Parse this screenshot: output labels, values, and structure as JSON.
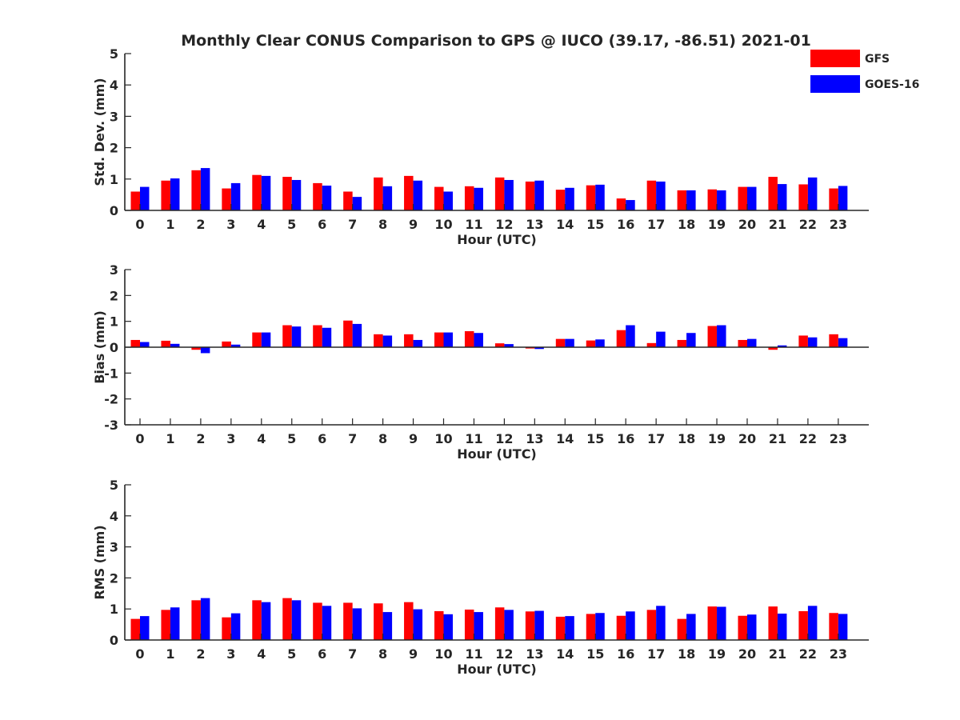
{
  "title": "Monthly Clear CONUS Comparison to GPS @ IUCO (39.17, -86.51) 2021-01",
  "colors": {
    "gfs": "#ff0000",
    "goes": "#0000ff",
    "axis": "#262626"
  },
  "legend": [
    {
      "name": "GFS",
      "color": "#ff0000"
    },
    {
      "name": "GOES-16",
      "color": "#0000ff"
    }
  ],
  "chart_data": [
    {
      "type": "bar",
      "panel": "std-dev",
      "ylabel": "Std. Dev. (mm)",
      "xlabel": "Hour (UTC)",
      "ylim": [
        0,
        5
      ],
      "yticks": [
        0,
        1,
        2,
        3,
        4,
        5
      ],
      "categories": [
        "0",
        "1",
        "2",
        "3",
        "4",
        "5",
        "6",
        "7",
        "8",
        "9",
        "10",
        "11",
        "12",
        "13",
        "14",
        "15",
        "16",
        "17",
        "18",
        "19",
        "20",
        "21",
        "22",
        "23"
      ],
      "series": [
        {
          "name": "GFS",
          "values": [
            0.6,
            0.95,
            1.28,
            0.7,
            1.13,
            1.07,
            0.87,
            0.6,
            1.05,
            1.1,
            0.75,
            0.77,
            1.05,
            0.92,
            0.66,
            0.8,
            0.38,
            0.95,
            0.64,
            0.67,
            0.75,
            1.07,
            0.83,
            0.7
          ]
        },
        {
          "name": "GOES-16",
          "values": [
            0.75,
            1.02,
            1.35,
            0.87,
            1.1,
            0.97,
            0.79,
            0.43,
            0.77,
            0.95,
            0.6,
            0.72,
            0.97,
            0.95,
            0.72,
            0.82,
            0.33,
            0.92,
            0.64,
            0.64,
            0.75,
            0.84,
            1.05,
            0.78
          ]
        }
      ]
    },
    {
      "type": "bar",
      "panel": "bias",
      "ylabel": "Bias (mm)",
      "xlabel": "Hour (UTC)",
      "ylim": [
        -3,
        3
      ],
      "yticks": [
        -3,
        -2,
        -1,
        0,
        1,
        2,
        3
      ],
      "categories": [
        "0",
        "1",
        "2",
        "3",
        "4",
        "5",
        "6",
        "7",
        "8",
        "9",
        "10",
        "11",
        "12",
        "13",
        "14",
        "15",
        "16",
        "17",
        "18",
        "19",
        "20",
        "21",
        "22",
        "23"
      ],
      "series": [
        {
          "name": "GFS",
          "values": [
            0.28,
            0.25,
            -0.1,
            0.22,
            0.57,
            0.85,
            0.85,
            1.03,
            0.5,
            0.5,
            0.57,
            0.62,
            0.15,
            -0.05,
            0.32,
            0.26,
            0.66,
            0.16,
            0.28,
            0.82,
            0.28,
            -0.1,
            0.45,
            0.5
          ]
        },
        {
          "name": "GOES-16",
          "values": [
            0.2,
            0.13,
            -0.23,
            0.1,
            0.57,
            0.8,
            0.75,
            0.9,
            0.45,
            0.28,
            0.57,
            0.55,
            0.12,
            -0.07,
            0.32,
            0.3,
            0.85,
            0.6,
            0.55,
            0.85,
            0.32,
            0.07,
            0.38,
            0.35
          ]
        }
      ]
    },
    {
      "type": "bar",
      "panel": "rms",
      "ylabel": "RMS (mm)",
      "xlabel": "Hour (UTC)",
      "ylim": [
        0,
        5
      ],
      "yticks": [
        0,
        1,
        2,
        3,
        4,
        5
      ],
      "categories": [
        "0",
        "1",
        "2",
        "3",
        "4",
        "5",
        "6",
        "7",
        "8",
        "9",
        "10",
        "11",
        "12",
        "13",
        "14",
        "15",
        "16",
        "17",
        "18",
        "19",
        "20",
        "21",
        "22",
        "23"
      ],
      "series": [
        {
          "name": "GFS",
          "values": [
            0.68,
            0.97,
            1.28,
            0.73,
            1.28,
            1.35,
            1.2,
            1.2,
            1.18,
            1.22,
            0.93,
            0.98,
            1.05,
            0.92,
            0.75,
            0.84,
            0.78,
            0.97,
            0.68,
            1.08,
            0.78,
            1.08,
            0.93,
            0.87
          ]
        },
        {
          "name": "GOES-16",
          "values": [
            0.77,
            1.05,
            1.35,
            0.86,
            1.22,
            1.28,
            1.1,
            1.02,
            0.9,
            0.99,
            0.83,
            0.9,
            0.97,
            0.94,
            0.77,
            0.87,
            0.92,
            1.1,
            0.84,
            1.07,
            0.82,
            0.85,
            1.1,
            0.84
          ]
        }
      ]
    }
  ]
}
